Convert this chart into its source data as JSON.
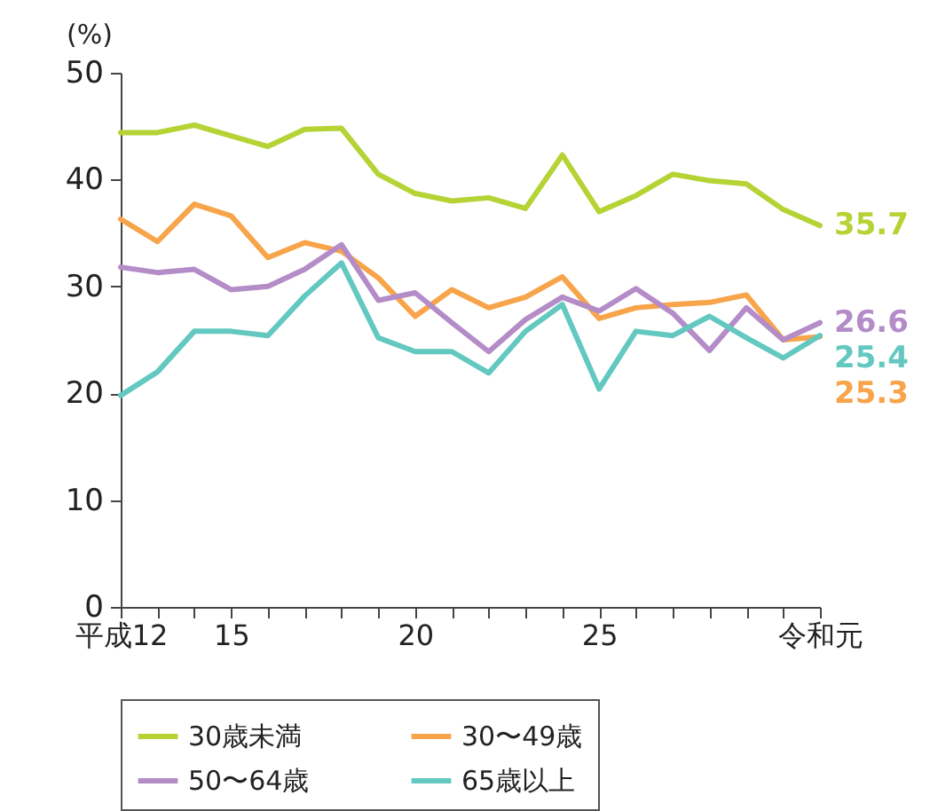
{
  "chart_data": {
    "type": "line",
    "ylabel": "(%)",
    "categories": [
      "平成12",
      null,
      null,
      "15",
      null,
      null,
      null,
      null,
      "20",
      null,
      null,
      null,
      null,
      "25",
      null,
      null,
      null,
      null,
      null,
      "令和元"
    ],
    "ylim": [
      0,
      50
    ],
    "yticks": [
      0,
      10,
      20,
      30,
      40,
      50
    ],
    "grid": false,
    "legend": "bottom",
    "marker": "none",
    "line_style": "solid",
    "series": [
      {
        "name": "30歳未満",
        "color": "#b5d334",
        "values": [
          44.4,
          44.4,
          45.1,
          44.1,
          43.1,
          44.7,
          44.8,
          40.5,
          38.7,
          38.0,
          38.3,
          37.3,
          42.3,
          37.0,
          38.5,
          40.5,
          39.9,
          39.6,
          37.2,
          35.7
        ],
        "value_labels": [
          null,
          null,
          null,
          null,
          null,
          null,
          null,
          null,
          null,
          null,
          null,
          null,
          null,
          null,
          null,
          null,
          null,
          null,
          null,
          "35.7"
        ]
      },
      {
        "name": "30〜49歳",
        "color": "#f7a44a",
        "values": [
          36.3,
          34.2,
          37.7,
          36.6,
          32.7,
          34.1,
          33.3,
          30.8,
          27.2,
          29.7,
          28.0,
          29.0,
          30.9,
          27.0,
          28.0,
          28.3,
          28.5,
          29.2,
          25.0,
          25.3
        ],
        "value_labels": [
          null,
          null,
          null,
          null,
          null,
          null,
          null,
          null,
          null,
          null,
          null,
          null,
          null,
          null,
          null,
          null,
          null,
          null,
          null,
          "25.3"
        ]
      },
      {
        "name": "50〜64歳",
        "color": "#b48cc8",
        "values": [
          31.8,
          31.3,
          31.6,
          29.7,
          30.0,
          31.6,
          33.9,
          28.7,
          29.4,
          26.6,
          23.9,
          26.9,
          29.0,
          27.7,
          29.8,
          27.5,
          24.0,
          28.0,
          25.0,
          26.6
        ],
        "value_labels": [
          null,
          null,
          null,
          null,
          null,
          null,
          null,
          null,
          null,
          null,
          null,
          null,
          null,
          null,
          null,
          null,
          null,
          null,
          null,
          "26.6"
        ]
      },
      {
        "name": "65歳以上",
        "color": "#62c8c0",
        "values": [
          19.8,
          22.0,
          25.8,
          25.8,
          25.4,
          29.1,
          32.2,
          25.2,
          23.9,
          23.9,
          21.9,
          25.8,
          28.3,
          20.4,
          25.8,
          25.4,
          27.2,
          25.2,
          23.3,
          25.4
        ],
        "value_labels": [
          null,
          null,
          null,
          null,
          null,
          null,
          null,
          null,
          null,
          null,
          null,
          null,
          null,
          null,
          null,
          null,
          null,
          null,
          null,
          "25.4"
        ]
      }
    ]
  }
}
